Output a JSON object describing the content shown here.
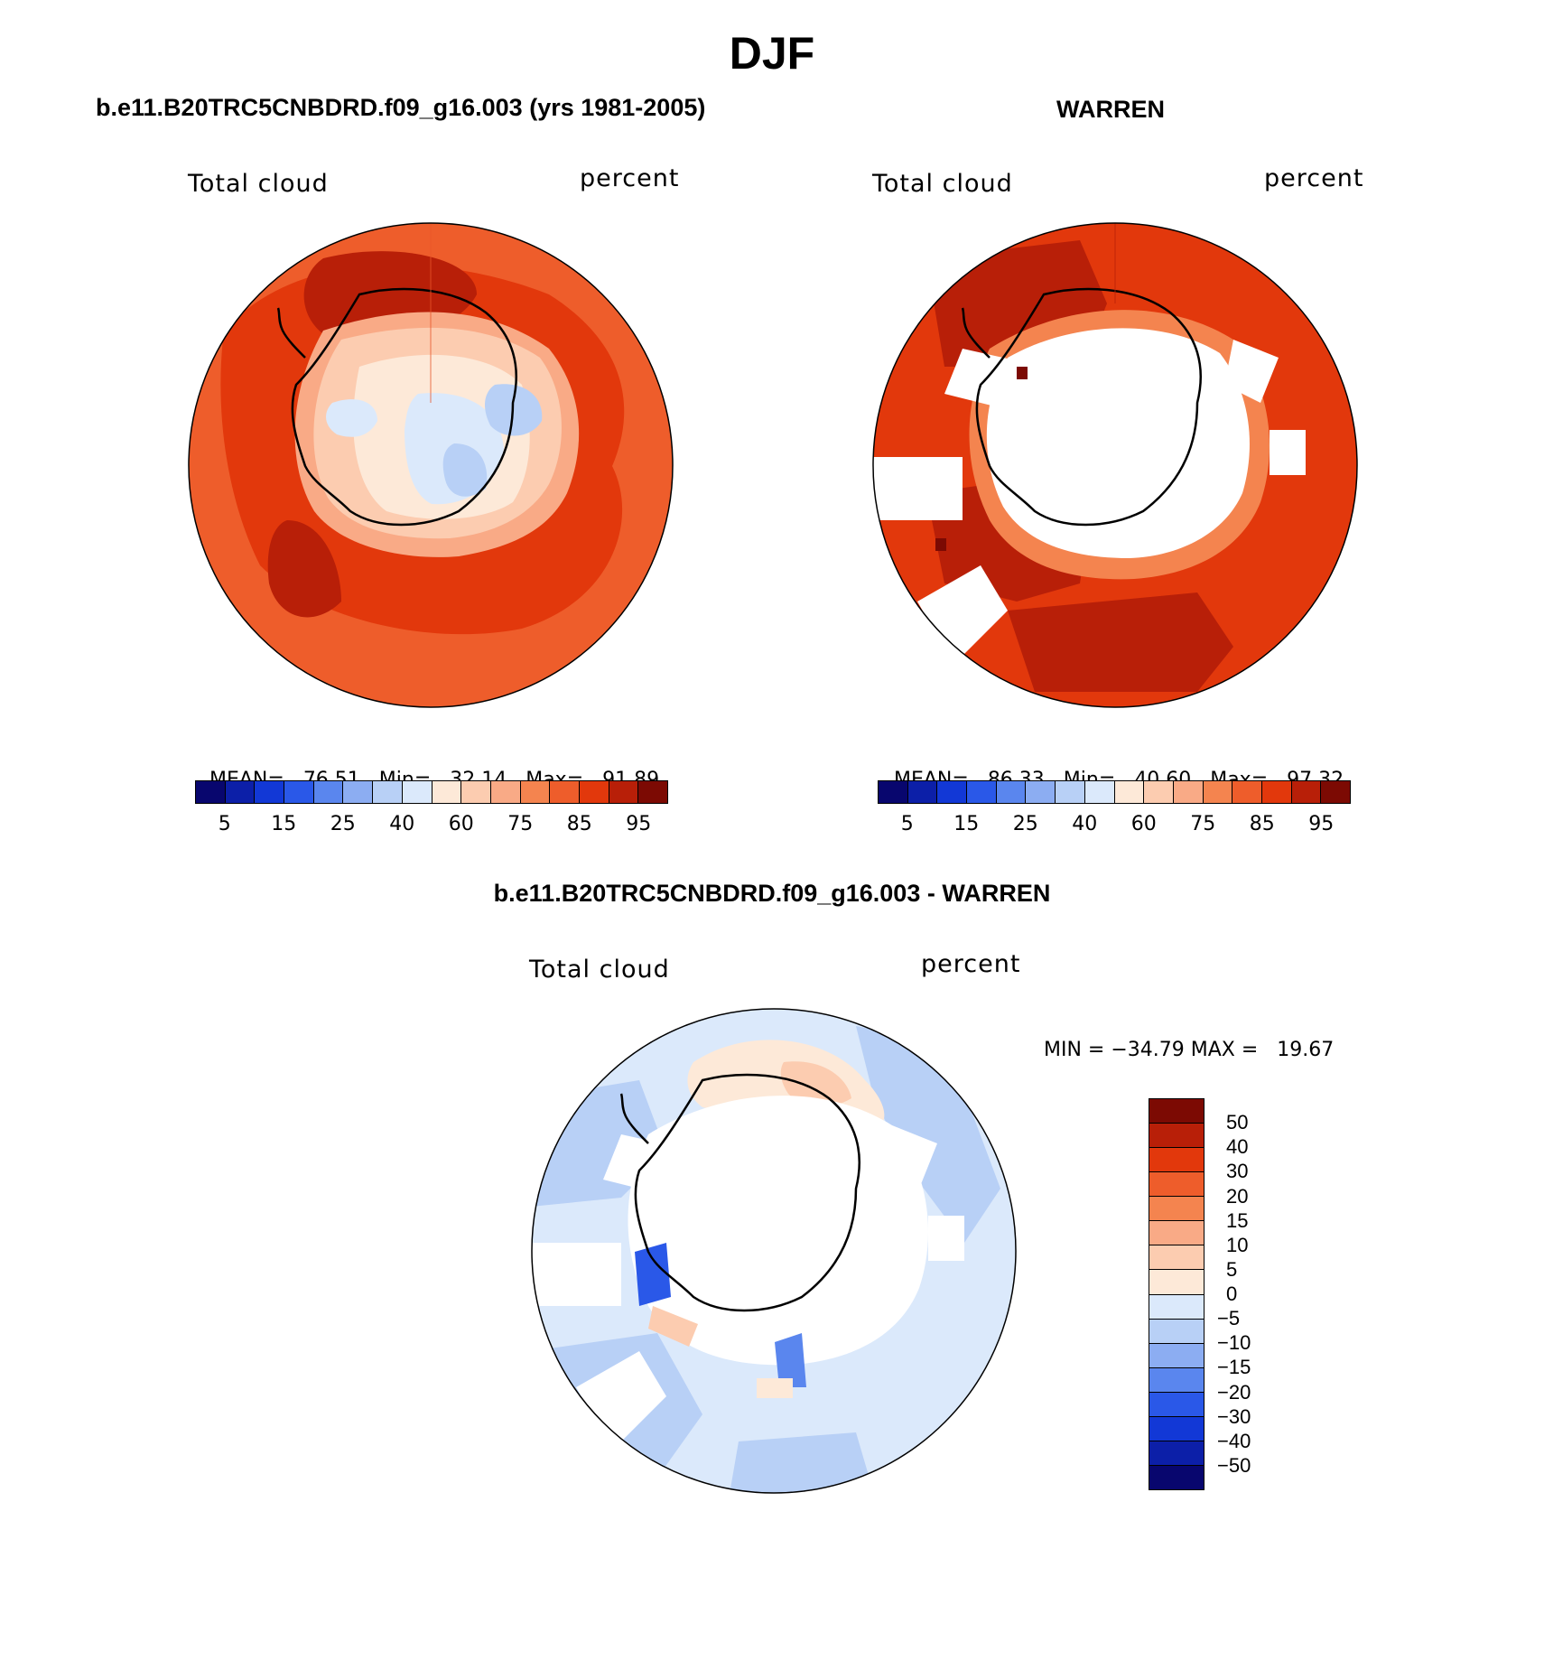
{
  "page_title": "DJF",
  "colors": {
    "scale": [
      "#08066e",
      "#0c1fa8",
      "#1238d6",
      "#2a58e8",
      "#5a86ee",
      "#8cadf2",
      "#b8d0f6",
      "#dbe9fb",
      "#fde9d8",
      "#fcccb0",
      "#f9aa86",
      "#f4844f",
      "#ee5d2b",
      "#e2380c",
      "#b81f08",
      "#7c0a03"
    ],
    "diff_scale": [
      "#7c0a03",
      "#b81f08",
      "#e2380c",
      "#ee5d2b",
      "#f4844f",
      "#f9aa86",
      "#fcccb0",
      "#fde9d8",
      "#dbe9fb",
      "#b8d0f6",
      "#8cadf2",
      "#5a86ee",
      "#2a58e8",
      "#1238d6",
      "#0c1fa8",
      "#08066e"
    ]
  },
  "panels": {
    "model": {
      "title": "b.e11.B20TRC5CNBDRD.f09_g16.003 (yrs 1981-2005)",
      "variable": "Total cloud",
      "units": "percent",
      "mean_label": "MEAN=",
      "mean": "76.51",
      "min_label": "Min=",
      "min": "32.14",
      "max_label": "Max=",
      "max": "91.89"
    },
    "obs": {
      "title": "WARREN",
      "variable": "Total cloud",
      "units": "percent",
      "mean_label": "MEAN=",
      "mean": "86.33",
      "min_label": "Min=",
      "min": "40.60",
      "max_label": "Max=",
      "max": "97.32"
    },
    "diff": {
      "title": "b.e11.B20TRC5CNBDRD.f09_g16.003 - WARREN",
      "variable": "Total cloud",
      "units": "percent",
      "minmax": "MIN = −34.79 MAX =   19.67"
    }
  },
  "colorbar_top": {
    "tick_labels": [
      "5",
      "15",
      "25",
      "40",
      "60",
      "75",
      "85",
      "95"
    ]
  },
  "colorbar_diff": {
    "tick_labels": [
      "50",
      "40",
      "30",
      "20",
      "15",
      "10",
      "5",
      "0",
      "−5",
      "−10",
      "−15",
      "−20",
      "−30",
      "−40",
      "−50"
    ]
  }
}
